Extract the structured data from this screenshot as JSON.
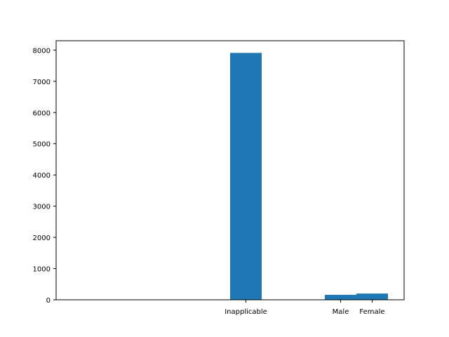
{
  "chart_data": {
    "type": "bar",
    "title": "",
    "xlabel": "",
    "ylabel": "",
    "categories": [
      "Inapplicable",
      "Male",
      "Female"
    ],
    "values": [
      7910,
      160,
      200
    ],
    "ylim": [
      0,
      8300
    ],
    "yticks": [
      0,
      1000,
      2000,
      3000,
      4000,
      5000,
      6000,
      7000,
      8000
    ],
    "grid": false,
    "legend": "none",
    "bar_color": "#1f77b4"
  }
}
